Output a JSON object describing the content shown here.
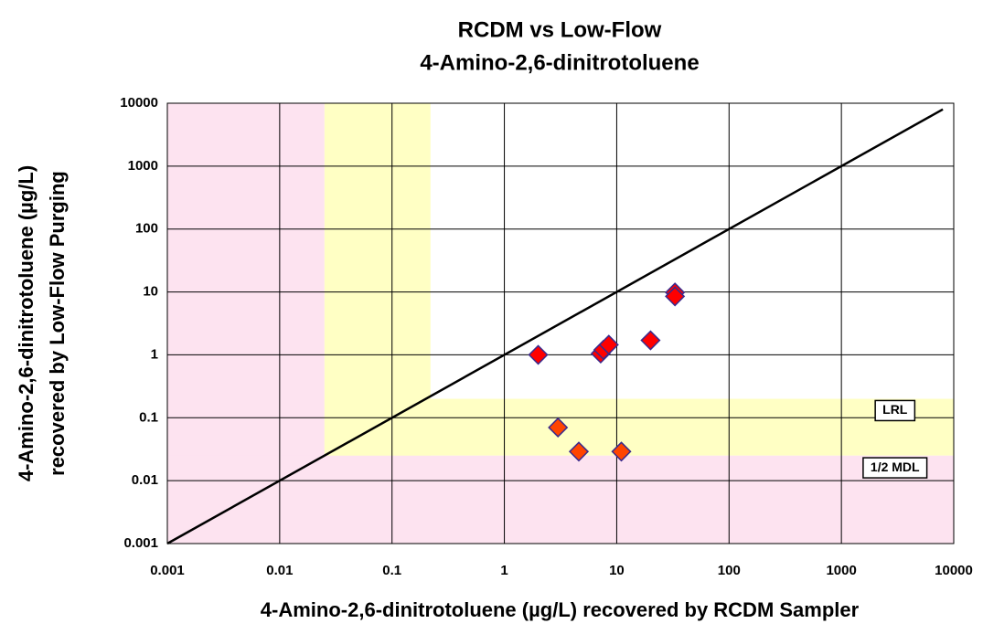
{
  "chart_data": {
    "type": "scatter",
    "title": [
      "RCDM vs Low-Flow",
      "4-Amino-2,6-dinitrotoluene"
    ],
    "xlabel": "4-Amino-2,6-dinitrotoluene (µg/L) recovered by RCDM Sampler",
    "ylabel": [
      "4-Amino-2,6-dinitrotoluene (µg/L)",
      "recovered by Low-Flow Purging"
    ],
    "log_x": true,
    "log_y": true,
    "grid": true,
    "xlim": [
      0.001,
      10000
    ],
    "ylim": [
      0.001,
      10000
    ],
    "xticks": [
      0.001,
      0.01,
      0.1,
      1,
      10,
      100,
      1000,
      10000
    ],
    "yticks": [
      0.001,
      0.01,
      0.1,
      1,
      10,
      100,
      1000,
      10000
    ],
    "x": [
      2,
      3,
      4.6,
      7.2,
      7.6,
      8.5,
      11,
      20,
      33,
      33
    ],
    "values": [
      1.0,
      0.07,
      0.029,
      1.05,
      1.2,
      1.45,
      0.029,
      1.7,
      9.8,
      8.5
    ],
    "colors": [
      "#ff0000",
      "#ff4500",
      "#ff4500",
      "#ff0000",
      "#ff0000",
      "#ff0000",
      "#ff4500",
      "#ff0000",
      "#ff0000",
      "#ff0000"
    ],
    "edge_color": "#3a2a8c",
    "reference_line": {
      "x": [
        0.001,
        8000
      ],
      "y": [
        0.001,
        8000
      ],
      "color": "#000000"
    },
    "regions": {
      "x_half_mdl": 0.025,
      "x_lrl": 0.22,
      "y_half_mdl": 0.025,
      "y_lrl": 0.2,
      "pink": "#fde3f0",
      "yellow": "#ffffc4"
    },
    "annotations": [
      {
        "text": "LRL",
        "x": 3000,
        "y": 0.13
      },
      {
        "text": "1/2 MDL",
        "x": 3000,
        "y": 0.016
      }
    ]
  }
}
